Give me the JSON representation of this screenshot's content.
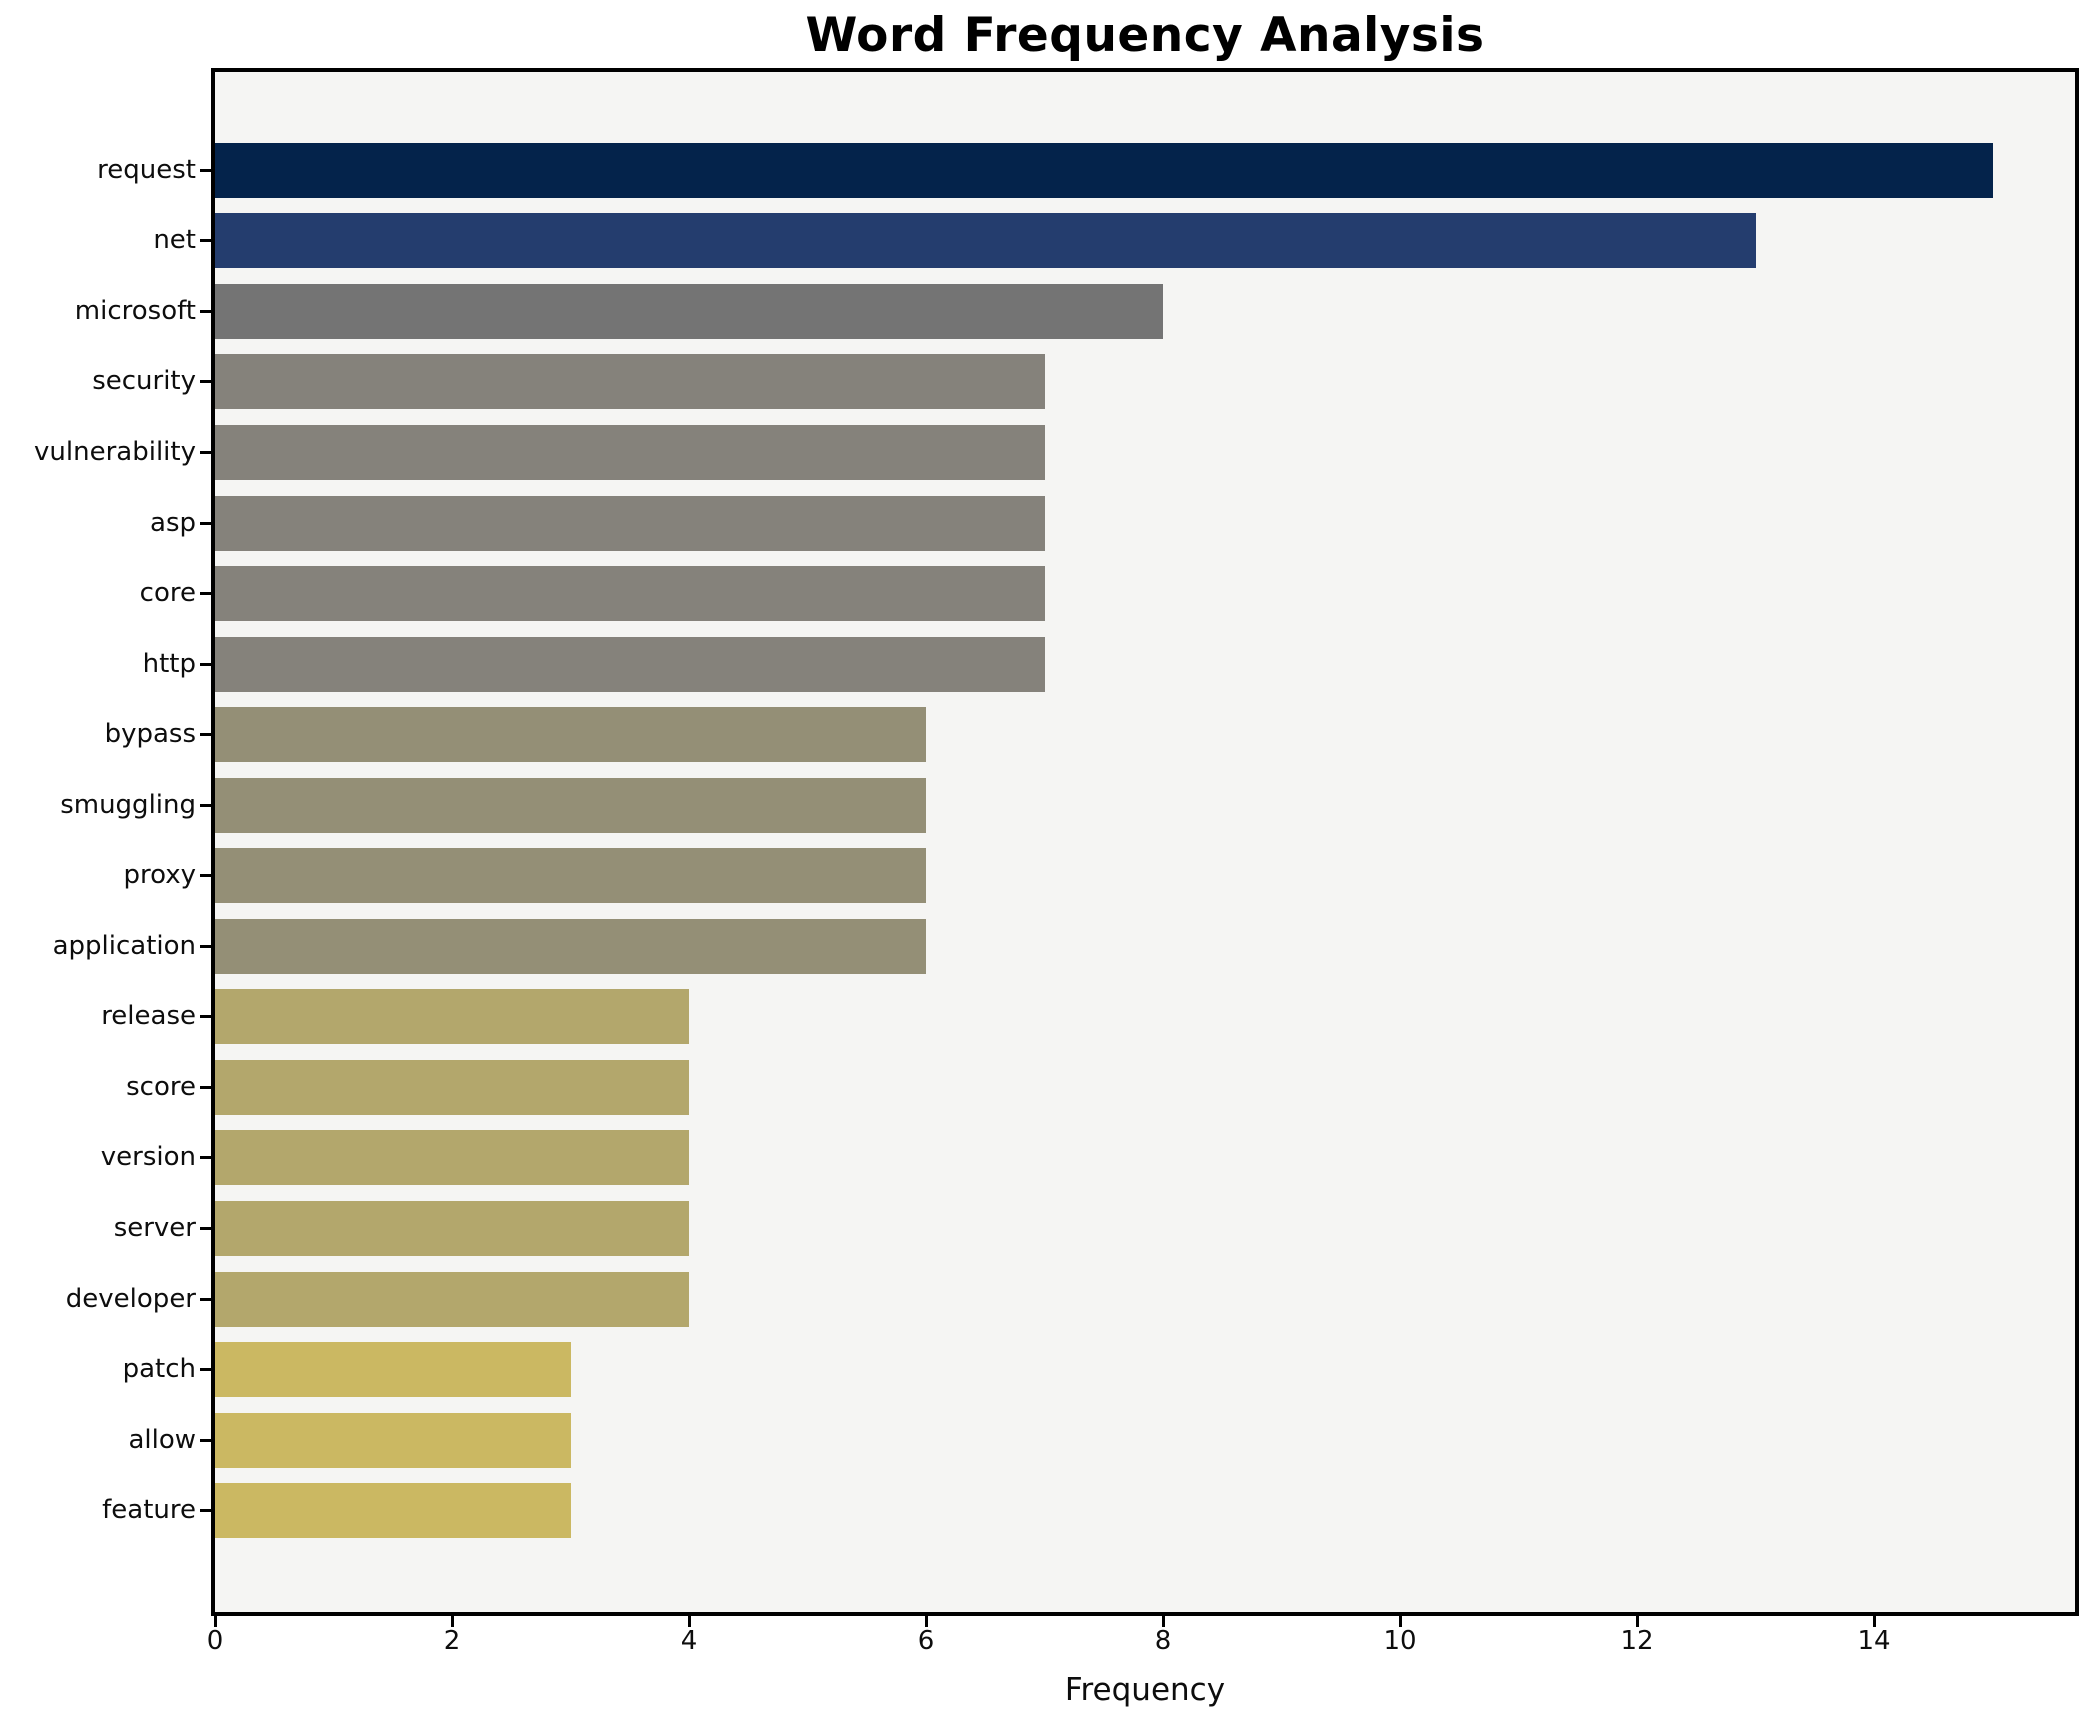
{
  "chart_data": {
    "type": "bar",
    "orientation": "horizontal",
    "title": "Word Frequency Analysis",
    "xlabel": "Frequency",
    "ylabel": "",
    "categories": [
      "request",
      "net",
      "microsoft",
      "security",
      "vulnerability",
      "asp",
      "core",
      "http",
      "bypass",
      "smuggling",
      "proxy",
      "application",
      "release",
      "score",
      "version",
      "server",
      "developer",
      "patch",
      "allow",
      "feature"
    ],
    "values": [
      15,
      13,
      8,
      7,
      7,
      7,
      7,
      7,
      6,
      6,
      6,
      6,
      4,
      4,
      4,
      4,
      4,
      3,
      3,
      3
    ],
    "bar_colors": [
      "#04234b",
      "#243d6e",
      "#747474",
      "#85827b",
      "#85827b",
      "#85827b",
      "#85827b",
      "#85827b",
      "#948f76",
      "#948f76",
      "#948f76",
      "#948f76",
      "#b3a76c",
      "#b3a76c",
      "#b3a76c",
      "#b3a76c",
      "#b3a76c",
      "#cbb862",
      "#cbb862",
      "#cbb862"
    ],
    "xticks": [
      0,
      2,
      4,
      6,
      8,
      10,
      12,
      14
    ],
    "xlim": [
      0,
      15.7
    ],
    "grid": false,
    "legend": "none",
    "plot_background": "#f5f5f3",
    "figure_background": "#ffffff"
  }
}
